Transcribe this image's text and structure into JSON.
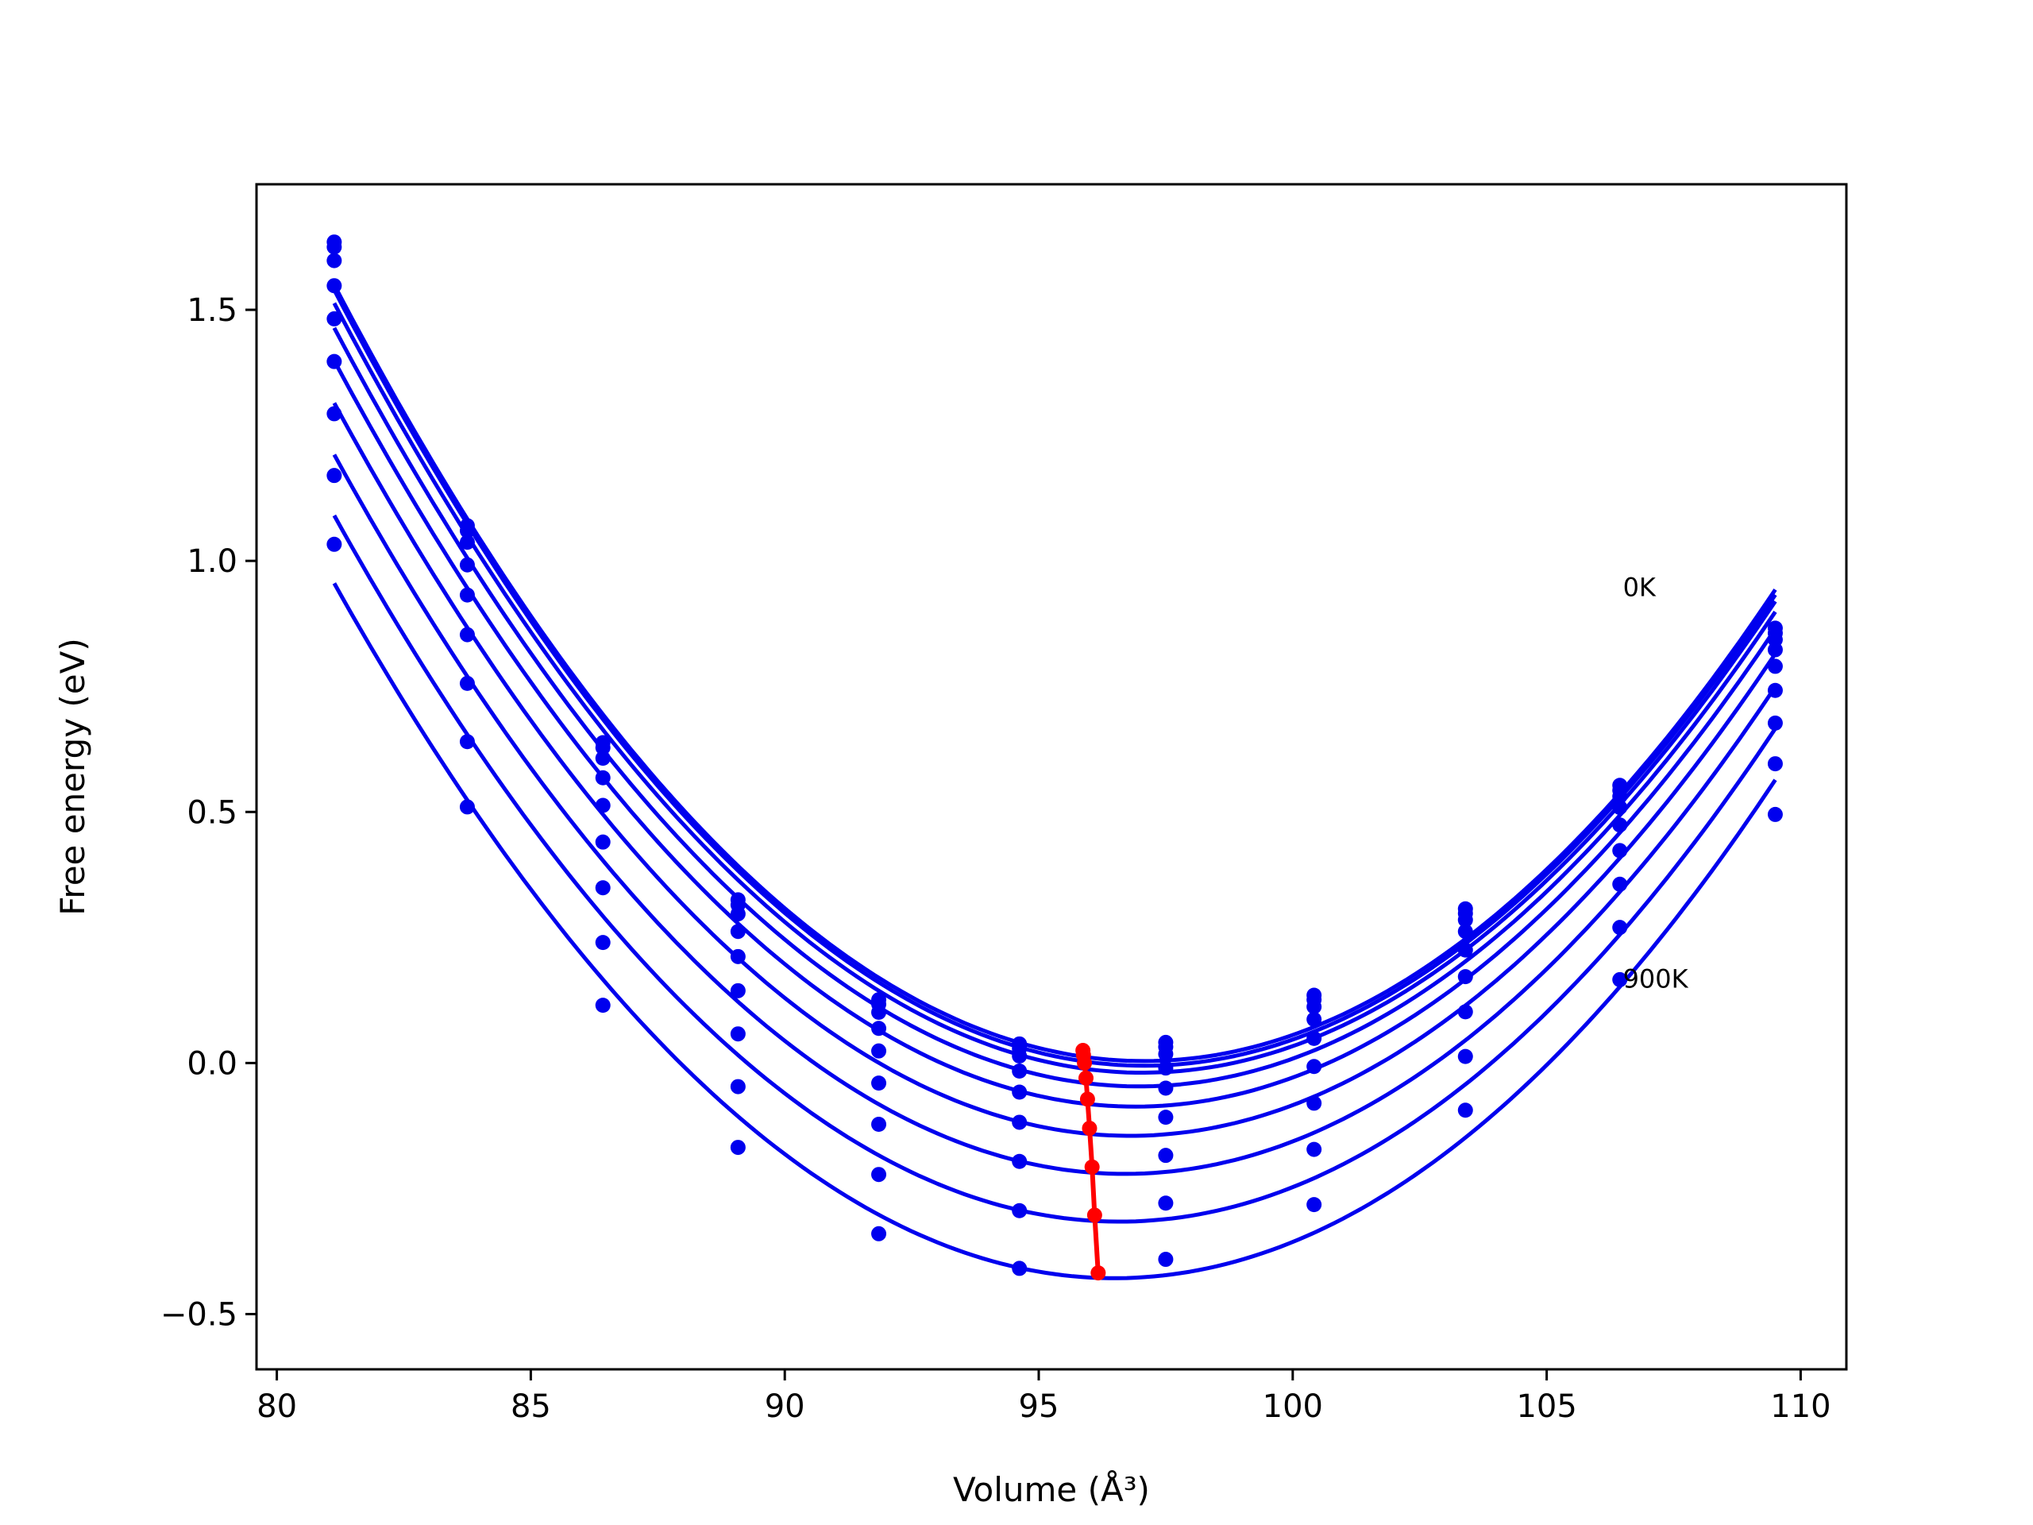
{
  "chart_data": {
    "type": "line",
    "title": "",
    "xlabel": "Volume (Å³)",
    "ylabel": "Free energy (eV)",
    "xlim": [
      79.6,
      110.9
    ],
    "ylim": [
      -0.61,
      1.75
    ],
    "xticks": [
      80,
      85,
      90,
      95,
      100,
      105,
      110
    ],
    "yticks": [
      -0.5,
      0.0,
      0.5,
      1.0,
      1.5
    ],
    "xtick_labels": [
      "80",
      "85",
      "90",
      "95",
      "100",
      "105",
      "110"
    ],
    "ytick_labels": [
      "−0.5",
      "0.0",
      "0.5",
      "1.0",
      "1.5"
    ],
    "grid": false,
    "legend": "none",
    "colors": {
      "curves": "#0000ee",
      "minimum_path": "#ff0000"
    },
    "annotations": [
      {
        "text": "0K",
        "x": 106.5,
        "y": 0.93
      },
      {
        "text": "900K",
        "x": 106.5,
        "y": 0.15
      }
    ],
    "volumes": [
      81.13,
      83.75,
      86.42,
      89.08,
      91.85,
      94.62,
      97.5,
      100.42,
      103.4,
      106.44,
      109.5
    ],
    "series": [
      {
        "values": [
          1.635,
          1.07,
          0.638,
          0.325,
          0.126,
          0.038,
          0.041,
          0.135,
          0.307,
          0.553,
          0.866
        ]
      },
      {
        "values": [
          1.625,
          1.06,
          0.628,
          0.315,
          0.117,
          0.029,
          0.032,
          0.126,
          0.298,
          0.543,
          0.856
        ]
      },
      {
        "values": [
          1.598,
          1.037,
          0.607,
          0.297,
          0.101,
          0.014,
          0.018,
          0.112,
          0.285,
          0.531,
          0.843
        ]
      },
      {
        "values": [
          1.548,
          0.992,
          0.568,
          0.262,
          0.069,
          -0.016,
          -0.01,
          0.087,
          0.262,
          0.509,
          0.823
        ]
      },
      {
        "values": [
          1.482,
          0.932,
          0.513,
          0.212,
          0.024,
          -0.058,
          -0.05,
          0.049,
          0.225,
          0.474,
          0.79
        ]
      },
      {
        "values": [
          1.397,
          0.853,
          0.44,
          0.144,
          -0.04,
          -0.118,
          -0.108,
          -0.007,
          0.172,
          0.423,
          0.742
        ]
      },
      {
        "values": [
          1.293,
          0.756,
          0.349,
          0.058,
          -0.122,
          -0.196,
          -0.184,
          -0.08,
          0.102,
          0.356,
          0.677
        ]
      },
      {
        "values": [
          1.17,
          0.64,
          0.24,
          -0.047,
          -0.222,
          -0.294,
          -0.279,
          -0.172,
          0.013,
          0.27,
          0.596
        ]
      },
      {
        "values": [
          1.033,
          0.51,
          0.115,
          -0.168,
          -0.34,
          -0.409,
          -0.391,
          -0.282,
          -0.094,
          0.166,
          0.495
        ]
      }
    ],
    "minimum_path": {
      "x": [
        95.87,
        95.88,
        95.9,
        95.93,
        95.96,
        96.0,
        96.05,
        96.1,
        96.17
      ],
      "y": [
        0.025,
        0.016,
        0.0,
        -0.03,
        -0.072,
        -0.13,
        -0.207,
        -0.303,
        -0.418
      ]
    },
    "curve_values_at_minima": [
      0.025,
      0.016,
      0.0,
      -0.03,
      -0.072,
      -0.13,
      -0.207,
      -0.303,
      -0.418
    ]
  }
}
